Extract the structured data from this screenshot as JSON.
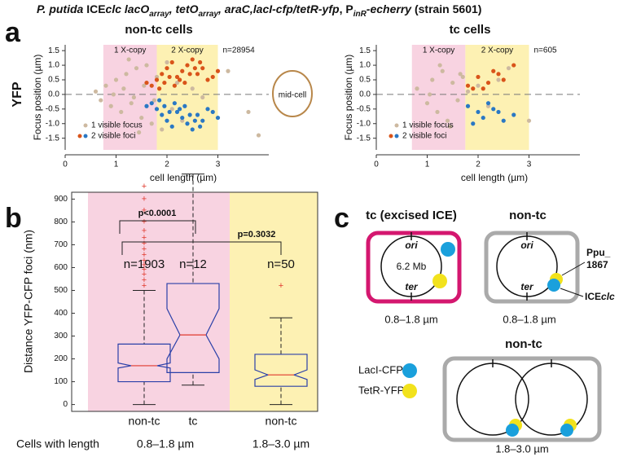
{
  "title_parts": [
    {
      "text": "P. putida",
      "style": "i"
    },
    {
      "text": " ICE",
      "style": "n"
    },
    {
      "text": "clc lacO",
      "style": "i"
    },
    {
      "text": "array",
      "style": "sub"
    },
    {
      "text": ", tetO",
      "style": "i"
    },
    {
      "text": "array",
      "style": "sub"
    },
    {
      "text": ", araC,lacI-cfp/tetR-yfp",
      "style": "i"
    },
    {
      "text": ", P",
      "style": "n"
    },
    {
      "text": "inR",
      "style": "sub"
    },
    {
      "text": "-echerry",
      "style": "i"
    },
    {
      "text": " (strain 5601)",
      "style": "n"
    }
  ],
  "panel_labels": [
    "a",
    "b",
    "c"
  ],
  "row_label": "YFP",
  "mid_cell": "mid-cell",
  "chart_data": [
    {
      "type": "scatter",
      "title": "non-tc cells",
      "xlabel": "cell length (µm)",
      "ylabel": "Focus position (µm)",
      "xlim": [
        0,
        4
      ],
      "xticks": [
        0,
        1,
        2,
        3
      ],
      "ylim": [
        -1.9,
        1.7
      ],
      "yticks": [
        {
          "value": -1.5,
          "label": "-1.5"
        },
        {
          "value": -1,
          "label": "-1.0"
        },
        {
          "value": -0.5,
          "label": "-0.5"
        },
        {
          "value": 0,
          "label": "0.0"
        },
        {
          "value": 0.5,
          "label": "0.5"
        },
        {
          "value": 1,
          "label": "1.0"
        },
        {
          "value": 1.5,
          "label": "1.5"
        }
      ],
      "regions": [
        {
          "label": "1 X-copy",
          "range": [
            0.75,
            1.8
          ],
          "color": "#f8d3e1"
        },
        {
          "label": "2 X-copy",
          "range": [
            1.8,
            3.0
          ],
          "color": "#fdf1b3"
        }
      ],
      "annotation": "n=28954",
      "hline": 0,
      "series": [
        {
          "name": "1 visible focus",
          "color": "#cdb9a0",
          "x": [
            0.6,
            0.7,
            0.8,
            0.9,
            1.0,
            1.1,
            1.2,
            1.3,
            1.4,
            1.5,
            1.6,
            1.7,
            1.8,
            1.9,
            2.0,
            2.1,
            2.2,
            2.3,
            2.5,
            2.7,
            0.95,
            1.15,
            1.35,
            1.55,
            1.75,
            1.25,
            1.45,
            3.2,
            3.6,
            3.8
          ],
          "values": [
            0.1,
            -0.2,
            0.3,
            -0.4,
            0.5,
            -0.6,
            0.7,
            -0.3,
            0.9,
            -0.8,
            1.0,
            -1.0,
            0.6,
            -1.2,
            1.1,
            -0.5,
            0.4,
            -0.9,
            0.2,
            -0.1,
            0.0,
            0.2,
            -0.1,
            0.3,
            -0.2,
            1.2,
            -1.3,
            0.8,
            -0.6,
            -1.4
          ]
        },
        {
          "name": "2 visible foci",
          "colors": [
            "#d9541a",
            "#2a78c4"
          ],
          "x": [
            1.7,
            1.8,
            1.9,
            2.0,
            2.1,
            2.2,
            2.3,
            2.4,
            2.5,
            2.6,
            2.7,
            2.8,
            1.85,
            1.95,
            2.05,
            2.15,
            2.25,
            2.35,
            2.45,
            2.55,
            2.65,
            1.6,
            2.9,
            3.0
          ],
          "values": [
            0.3,
            0.5,
            0.7,
            0.9,
            1.1,
            0.6,
            0.8,
            1.0,
            1.2,
            0.7,
            0.9,
            0.5,
            0.2,
            0.4,
            0.6,
            0.3,
            0.5,
            0.4,
            0.7,
            0.9,
            1.1,
            0.4,
            0.6,
            0.8
          ],
          "values2": [
            -0.3,
            -0.5,
            -0.7,
            -0.9,
            -1.1,
            -0.6,
            -0.8,
            -1.0,
            -1.2,
            -0.7,
            -0.9,
            -0.5,
            -0.2,
            -0.4,
            -0.6,
            -0.3,
            -0.5,
            -0.4,
            -0.7,
            -0.9,
            -1.1,
            -0.4,
            -0.6,
            -0.8
          ]
        }
      ]
    },
    {
      "type": "scatter",
      "title": "tc cells",
      "xlabel": "cell length (µm)",
      "ylabel": "Focus position (µm)",
      "xlim": [
        0,
        4
      ],
      "xticks": [
        0,
        1,
        2,
        3
      ],
      "ylim": [
        -1.9,
        1.7
      ],
      "yticks": [
        {
          "value": -1.5,
          "label": "-1.5"
        },
        {
          "value": -1,
          "label": "-1.0"
        },
        {
          "value": -0.5,
          "label": "-0.5"
        },
        {
          "value": 0,
          "label": "0.0"
        },
        {
          "value": 0.5,
          "label": "0.5"
        },
        {
          "value": 1,
          "label": "1.0"
        },
        {
          "value": 1.5,
          "label": "1.5"
        }
      ],
      "regions": [
        {
          "label": "1 X-copy",
          "range": [
            0.7,
            1.75
          ],
          "color": "#f8d3e1"
        },
        {
          "label": "2 X-copy",
          "range": [
            1.75,
            3.0
          ],
          "color": "#fdf1b3"
        }
      ],
      "annotation": "n=605",
      "hline": 0,
      "series": [
        {
          "name": "1 visible focus",
          "color": "#cdb9a0",
          "x": [
            0.8,
            1.0,
            1.1,
            1.2,
            1.3,
            1.4,
            1.5,
            1.6,
            1.7,
            1.8,
            2.0,
            2.2,
            1.05,
            1.25,
            1.45,
            1.65,
            2.4,
            2.6,
            3.0
          ],
          "values": [
            0.2,
            -0.3,
            0.5,
            -0.6,
            0.8,
            -0.9,
            0.4,
            -0.2,
            0.6,
            0.1,
            0.3,
            -0.4,
            0.0,
            1.0,
            -1.1,
            0.7,
            0.5,
            0.9,
            -0.9
          ]
        },
        {
          "name": "2 visible foci",
          "colors": [
            "#d9541a",
            "#2a78c4"
          ],
          "x": [
            1.8,
            2.0,
            2.1,
            2.3,
            2.5,
            2.7,
            1.9,
            2.2,
            2.4
          ],
          "values": [
            0.3,
            0.6,
            0.2,
            0.8,
            0.5,
            1.0,
            0.2,
            0.4,
            0.7
          ],
          "values2": [
            -0.4,
            -0.6,
            -0.8,
            -0.5,
            -0.9,
            -0.7,
            -1.0,
            -0.3,
            -0.6
          ]
        }
      ]
    },
    {
      "type": "box",
      "ylabel": "Distance YFP-CFP foci (nm)",
      "categories": [
        "non-tc",
        "tc",
        "non-tc"
      ],
      "ylim": [
        -30,
        930
      ],
      "yticks": [
        0,
        100,
        200,
        300,
        400,
        500,
        600,
        700,
        800,
        900
      ],
      "backgrounds": [
        "#f8d3e1",
        "#f8d3e1",
        "#fdf1b3"
      ],
      "box_color": "#2b40a8",
      "median_color": "#e03a2e",
      "stats": [
        {
          "min": 0,
          "q1": 100,
          "median": 170,
          "q3": 265,
          "max": 500,
          "notch": [
            160,
            182
          ]
        },
        {
          "min": 85,
          "q1": 140,
          "median": 305,
          "q3": 530,
          "max": 1010,
          "notch": [
            200,
            420
          ]
        },
        {
          "min": 0,
          "q1": 80,
          "median": 130,
          "q3": 220,
          "max": 380,
          "notch": [
            110,
            152
          ]
        }
      ],
      "outliers": [
        [
          520,
          545,
          570,
          590,
          610,
          630,
          655,
          680,
          705,
          730,
          760,
          800,
          850,
          900,
          955
        ],
        [],
        [
          520
        ]
      ],
      "annotations": [
        "n=1903",
        "n=12",
        "n=50"
      ],
      "comparisons": [
        {
          "label": "p<0.0001",
          "groups": [
            0,
            1
          ]
        },
        {
          "label": "p=0.3032",
          "groups": [
            0,
            2
          ]
        }
      ],
      "footer": {
        "label": "Cells with length",
        "ranges": [
          "0.8–1.8 µm",
          "1.8–3.0 µm"
        ]
      }
    }
  ],
  "diagram": {
    "tc_title": "tc (excised ICE)",
    "nontc_title": "non-tc",
    "nontc2_title": "non-tc",
    "ori": "ori",
    "ter": "ter",
    "size": "6.2 Mb",
    "ppu": [
      "Ppu_",
      "1867"
    ],
    "ice": [
      "ICE",
      "clc"
    ],
    "range1": "0.8–1.8 µm",
    "range2": "0.8–1.8 µm",
    "range3": "1.8–3.0 µm",
    "legend": [
      {
        "name": "LacI-CFP",
        "color": "#1aa0dc"
      },
      {
        "name": "TetR-YFP",
        "color": "#f2e21c"
      }
    ]
  }
}
